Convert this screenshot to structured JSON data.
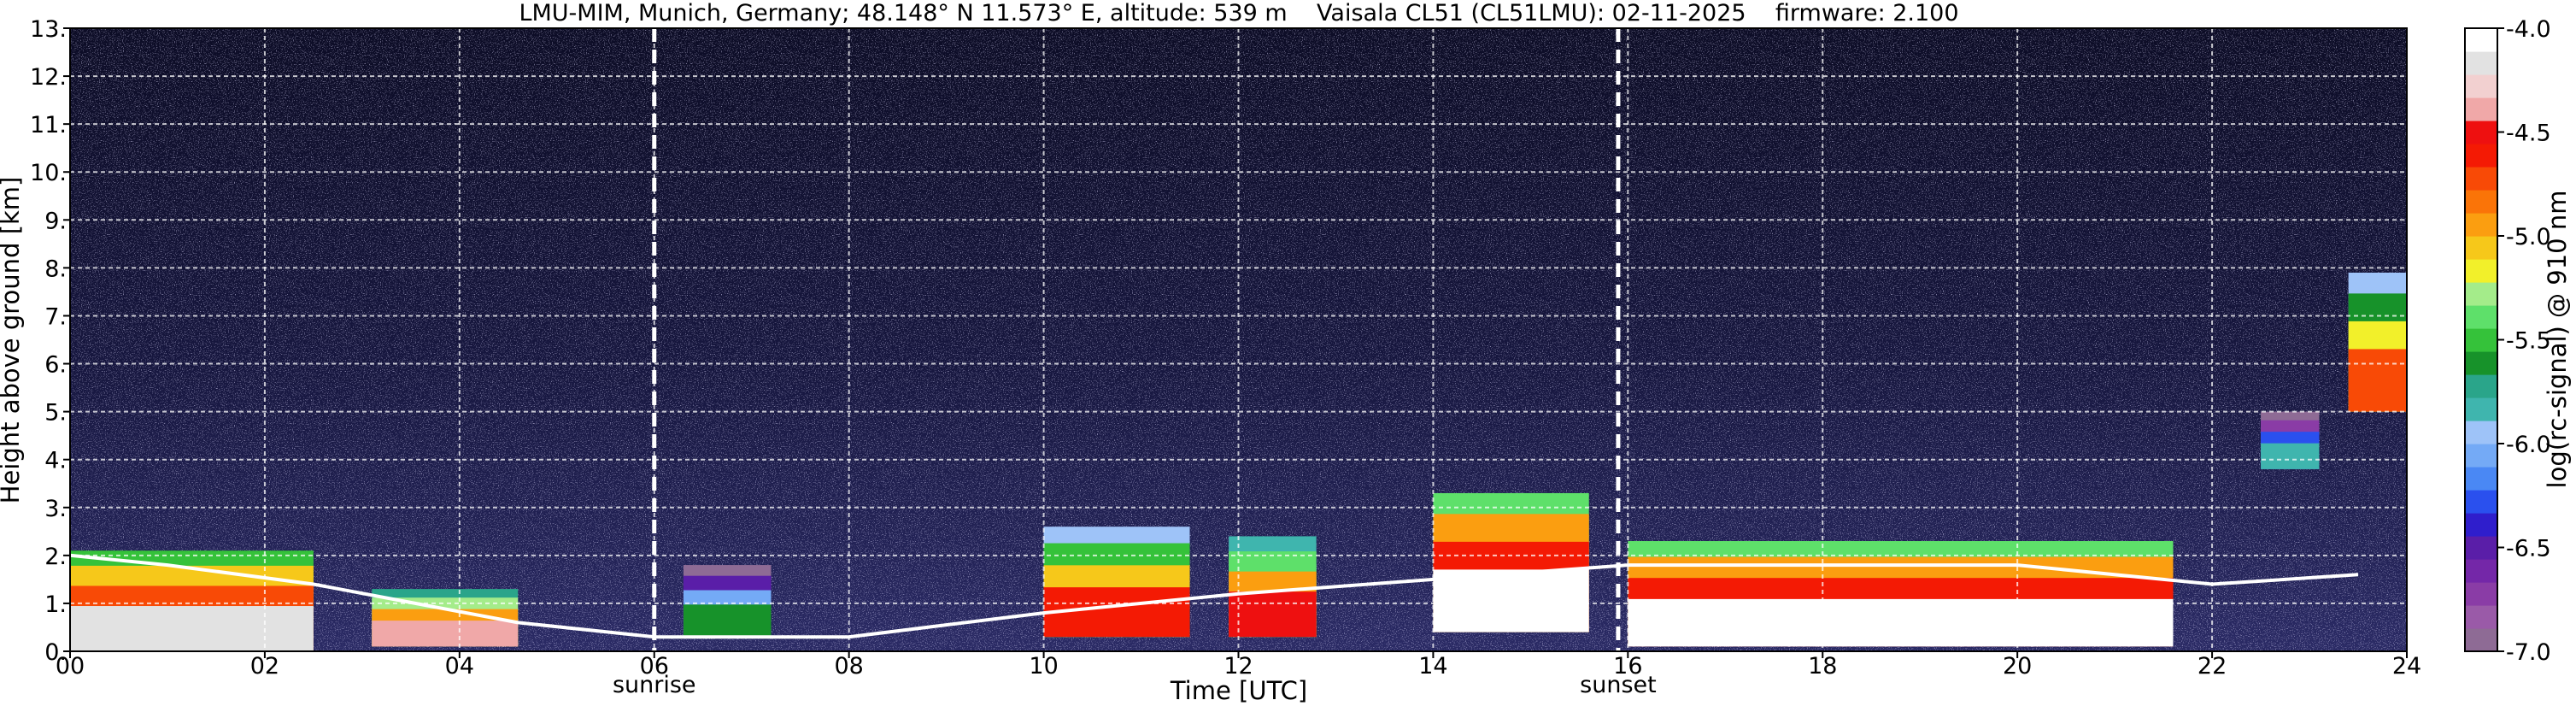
{
  "chart_data": {
    "type": "heatmap",
    "title": "LMU-MIM, Munich, Germany; 48.148° N 11.573° E, altitude: 539 m    Vaisala CL51 (CL51LMU): 02-11-2025    firmware: 2.100",
    "xlabel": "Time [UTC]",
    "ylabel": "Height above ground [km]",
    "colorbar_label": "log(rc-signal) @ 910 nm",
    "xlim": [
      0,
      24
    ],
    "ylim": [
      0,
      13
    ],
    "x_ticks": [
      "00",
      "02",
      "04",
      "06",
      "08",
      "10",
      "12",
      "14",
      "16",
      "18",
      "20",
      "22",
      "24"
    ],
    "x_tick_values": [
      0,
      2,
      4,
      6,
      8,
      10,
      12,
      14,
      16,
      18,
      20,
      22,
      24
    ],
    "y_ticks": [
      "0.",
      "1.",
      "2.",
      "3.",
      "4.",
      "5.",
      "6.",
      "7.",
      "8.",
      "9.",
      "10.",
      "11.",
      "12.",
      "13."
    ],
    "y_tick_values": [
      0,
      1,
      2,
      3,
      4,
      5,
      6,
      7,
      8,
      9,
      10,
      11,
      12,
      13
    ],
    "grid": true,
    "colorbar": {
      "range": [
        -7.0,
        -4.0
      ],
      "tick_labels": [
        "-7.0",
        "-6.5",
        "-6.0",
        "-5.5",
        "-5.0",
        "-4.5",
        "-4.0"
      ],
      "tick_values": [
        -7.0,
        -6.5,
        -6.0,
        -5.5,
        -5.0,
        -4.5,
        -4.0
      ],
      "colors": [
        "#8e6b95",
        "#9a5aa8",
        "#8a3ca6",
        "#7427a8",
        "#5a1ea8",
        "#2f1ecc",
        "#2a50ee",
        "#4a88f4",
        "#74aaf6",
        "#9ec3f8",
        "#3fb5ae",
        "#2aa58a",
        "#17922a",
        "#35c23a",
        "#5ee06a",
        "#a4ec8a",
        "#f2f02a",
        "#f6c81a",
        "#fb9e10",
        "#fa7408",
        "#f84a06",
        "#f41a04",
        "#ee1010",
        "#f0a8a8",
        "#f2d0d0",
        "#e2e2e2",
        "#ffffff"
      ]
    },
    "events": [
      {
        "label": "sunrise",
        "time": 6.0
      },
      {
        "label": "sunset",
        "time": 15.9
      }
    ],
    "cloud_features": [
      {
        "time_start": 0.0,
        "time_end": 2.5,
        "base": 0.0,
        "top": 2.1,
        "level": -4.2
      },
      {
        "time_start": 3.1,
        "time_end": 4.6,
        "base": 0.1,
        "top": 1.3,
        "level": -4.4
      },
      {
        "time_start": 6.3,
        "time_end": 7.2,
        "base": 0.3,
        "top": 1.8,
        "level": -5.6
      },
      {
        "time_start": 10.0,
        "time_end": 11.5,
        "base": 0.3,
        "top": 2.6,
        "level": -4.6
      },
      {
        "time_start": 11.9,
        "time_end": 12.8,
        "base": 0.3,
        "top": 2.4,
        "level": -4.5
      },
      {
        "time_start": 14.0,
        "time_end": 15.6,
        "base": 0.4,
        "top": 3.3,
        "level": -4.1
      },
      {
        "time_start": 16.0,
        "time_end": 21.6,
        "base": 0.1,
        "top": 2.3,
        "level": -4.1
      },
      {
        "time_start": 22.5,
        "time_end": 23.1,
        "base": 3.8,
        "top": 5.0,
        "level": -5.8
      },
      {
        "time_start": 23.4,
        "time_end": 24.0,
        "base": 5.0,
        "top": 7.9,
        "level": -4.7
      }
    ],
    "boundary_layer": [
      {
        "time": 0.0,
        "height": 2.0
      },
      {
        "time": 1.0,
        "height": 1.8
      },
      {
        "time": 2.5,
        "height": 1.4
      },
      {
        "time": 4.6,
        "height": 0.6
      },
      {
        "time": 6.0,
        "height": 0.3
      },
      {
        "time": 8.0,
        "height": 0.3
      },
      {
        "time": 10.0,
        "height": 0.8
      },
      {
        "time": 12.0,
        "height": 1.2
      },
      {
        "time": 14.0,
        "height": 1.5
      },
      {
        "time": 16.0,
        "height": 1.8
      },
      {
        "time": 20.0,
        "height": 1.8
      },
      {
        "time": 22.0,
        "height": 1.4
      },
      {
        "time": 23.5,
        "height": 1.6
      }
    ]
  }
}
